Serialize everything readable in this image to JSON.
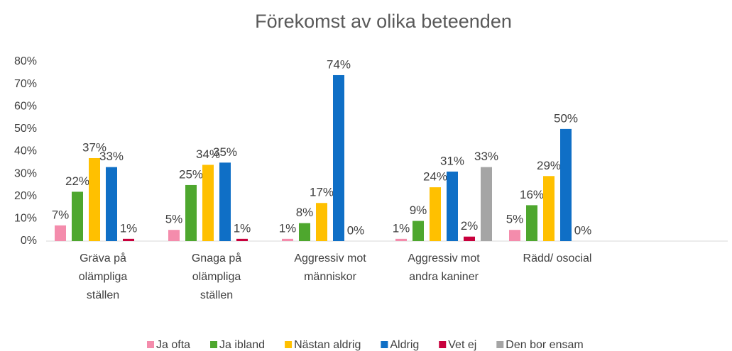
{
  "chart_data": {
    "type": "bar",
    "title": "Förekomst av olika beteenden",
    "categories": [
      "Gräva på olämpliga ställen",
      "Gnaga på olämpliga ställen",
      "Aggressiv mot människor",
      "Aggressiv mot andra kaniner",
      "Rädd/ osocial",
      null
    ],
    "series": [
      {
        "name": "Ja ofta",
        "color": "#f48cac",
        "values": [
          7,
          5,
          1,
          1,
          5,
          null
        ],
        "value_labels": [
          "7%",
          "5%",
          "1%",
          "1%",
          "5%",
          null
        ]
      },
      {
        "name": "Ja ibland",
        "color": "#4ea72e",
        "values": [
          22,
          25,
          8,
          9,
          16,
          null
        ],
        "value_labels": [
          "22%",
          "25%",
          "8%",
          "9%",
          "16%",
          null
        ]
      },
      {
        "name": "Nästan aldrig",
        "color": "#ffc000",
        "values": [
          37,
          34,
          17,
          24,
          29,
          null
        ],
        "value_labels": [
          "37%",
          "34%",
          "17%",
          "24%",
          "29%",
          null
        ]
      },
      {
        "name": "Aldrig",
        "color": "#0f6fc6",
        "values": [
          33,
          35,
          74,
          31,
          50,
          null
        ],
        "value_labels": [
          "33%",
          "35%",
          "74%",
          "31%",
          "50%",
          null
        ]
      },
      {
        "name": "Vet ej",
        "color": "#c8003c",
        "values": [
          1,
          1,
          0,
          2,
          0,
          null
        ],
        "value_labels": [
          "1%",
          "1%",
          "0%",
          "2%",
          "0%",
          null
        ]
      },
      {
        "name": "Den bor ensam",
        "color": "#a5a5a5",
        "values": [
          null,
          null,
          null,
          33,
          null,
          null
        ],
        "value_labels": [
          null,
          null,
          null,
          "33%",
          null,
          null
        ]
      }
    ],
    "ylim": [
      0,
      80
    ],
    "yticks": [
      {
        "value": 0,
        "label": "0%"
      },
      {
        "value": 10,
        "label": "10%"
      },
      {
        "value": 20,
        "label": "20%"
      },
      {
        "value": 30,
        "label": "30%"
      },
      {
        "value": 40,
        "label": "40%"
      },
      {
        "value": 50,
        "label": "50%"
      },
      {
        "value": 60,
        "label": "60%"
      },
      {
        "value": 70,
        "label": "70%"
      },
      {
        "value": 80,
        "label": "80%"
      }
    ],
    "grid": false,
    "legend": "bottom"
  }
}
